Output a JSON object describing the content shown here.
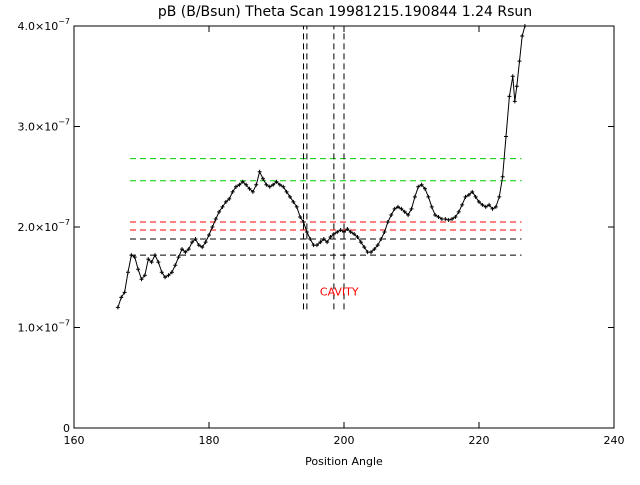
{
  "chart_data": {
    "type": "line",
    "title": "pB (B/Bsun) Theta Scan 19981215.190844  1.24 Rsun",
    "xlabel": "Position Angle",
    "ylabel": "",
    "xlim": [
      160,
      240
    ],
    "ylim": [
      0,
      4e-07
    ],
    "x_ticks": [
      {
        "value": 160,
        "label": "160"
      },
      {
        "value": 180,
        "label": "180"
      },
      {
        "value": 200,
        "label": "200"
      },
      {
        "value": 220,
        "label": "220"
      },
      {
        "value": 240,
        "label": "240"
      }
    ],
    "y_ticks": [
      {
        "value": 0,
        "mant": "0",
        "exp": ""
      },
      {
        "value": 1e-07,
        "mant": "1.0×10",
        "exp": "−7"
      },
      {
        "value": 2e-07,
        "mant": "2.0×10",
        "exp": "−7"
      },
      {
        "value": 3e-07,
        "mant": "3.0×10",
        "exp": "−7"
      },
      {
        "value": 4e-07,
        "mant": "4.0×10",
        "exp": "−7"
      }
    ],
    "grid": false,
    "legend": "none",
    "series": [
      {
        "style": "line-with-plus-markers",
        "color": "#000000",
        "points": [
          [
            166.5,
            1.2e-07
          ],
          [
            167.0,
            1.3e-07
          ],
          [
            167.5,
            1.35e-07
          ],
          [
            168.0,
            1.55e-07
          ],
          [
            168.5,
            1.72e-07
          ],
          [
            169.0,
            1.7e-07
          ],
          [
            169.5,
            1.58e-07
          ],
          [
            170.0,
            1.48e-07
          ],
          [
            170.5,
            1.52e-07
          ],
          [
            171.0,
            1.68e-07
          ],
          [
            171.5,
            1.65e-07
          ],
          [
            172.0,
            1.72e-07
          ],
          [
            172.5,
            1.65e-07
          ],
          [
            173.0,
            1.55e-07
          ],
          [
            173.5,
            1.5e-07
          ],
          [
            174.0,
            1.52e-07
          ],
          [
            174.5,
            1.55e-07
          ],
          [
            175.0,
            1.62e-07
          ],
          [
            175.5,
            1.7e-07
          ],
          [
            176.0,
            1.78e-07
          ],
          [
            176.5,
            1.75e-07
          ],
          [
            177.0,
            1.78e-07
          ],
          [
            177.5,
            1.85e-07
          ],
          [
            178.0,
            1.88e-07
          ],
          [
            178.5,
            1.82e-07
          ],
          [
            179.0,
            1.8e-07
          ],
          [
            179.5,
            1.85e-07
          ],
          [
            180.0,
            1.92e-07
          ],
          [
            180.5,
            2e-07
          ],
          [
            181.0,
            2.08e-07
          ],
          [
            181.5,
            2.15e-07
          ],
          [
            182.0,
            2.2e-07
          ],
          [
            182.5,
            2.25e-07
          ],
          [
            183.0,
            2.28e-07
          ],
          [
            183.5,
            2.35e-07
          ],
          [
            184.0,
            2.4e-07
          ],
          [
            184.5,
            2.42e-07
          ],
          [
            185.0,
            2.45e-07
          ],
          [
            185.5,
            2.42e-07
          ],
          [
            186.0,
            2.38e-07
          ],
          [
            186.5,
            2.35e-07
          ],
          [
            187.0,
            2.42e-07
          ],
          [
            187.5,
            2.55e-07
          ],
          [
            188.0,
            2.48e-07
          ],
          [
            188.5,
            2.42e-07
          ],
          [
            189.0,
            2.4e-07
          ],
          [
            189.5,
            2.42e-07
          ],
          [
            190.0,
            2.45e-07
          ],
          [
            190.5,
            2.42e-07
          ],
          [
            191.0,
            2.4e-07
          ],
          [
            191.5,
            2.35e-07
          ],
          [
            192.0,
            2.3e-07
          ],
          [
            192.5,
            2.25e-07
          ],
          [
            193.0,
            2.2e-07
          ],
          [
            193.5,
            2.1e-07
          ],
          [
            194.0,
            2.05e-07
          ],
          [
            194.5,
            1.95e-07
          ],
          [
            195.0,
            1.88e-07
          ],
          [
            195.5,
            1.82e-07
          ],
          [
            196.0,
            1.82e-07
          ],
          [
            196.5,
            1.85e-07
          ],
          [
            197.0,
            1.88e-07
          ],
          [
            197.5,
            1.85e-07
          ],
          [
            198.0,
            1.9e-07
          ],
          [
            198.5,
            1.93e-07
          ],
          [
            199.0,
            1.95e-07
          ],
          [
            199.5,
            1.97e-07
          ],
          [
            200.0,
            1.95e-07
          ],
          [
            200.5,
            1.98e-07
          ],
          [
            201.0,
            1.95e-07
          ],
          [
            201.5,
            1.93e-07
          ],
          [
            202.0,
            1.9e-07
          ],
          [
            202.5,
            1.85e-07
          ],
          [
            203.0,
            1.8e-07
          ],
          [
            203.5,
            1.75e-07
          ],
          [
            204.0,
            1.75e-07
          ],
          [
            204.5,
            1.78e-07
          ],
          [
            205.0,
            1.82e-07
          ],
          [
            205.5,
            1.88e-07
          ],
          [
            206.0,
            1.95e-07
          ],
          [
            206.5,
            2.05e-07
          ],
          [
            207.0,
            2.12e-07
          ],
          [
            207.5,
            2.18e-07
          ],
          [
            208.0,
            2.2e-07
          ],
          [
            208.5,
            2.18e-07
          ],
          [
            209.0,
            2.15e-07
          ],
          [
            209.5,
            2.12e-07
          ],
          [
            210.0,
            2.18e-07
          ],
          [
            210.5,
            2.3e-07
          ],
          [
            211.0,
            2.4e-07
          ],
          [
            211.5,
            2.42e-07
          ],
          [
            212.0,
            2.38e-07
          ],
          [
            212.5,
            2.3e-07
          ],
          [
            213.0,
            2.2e-07
          ],
          [
            213.5,
            2.12e-07
          ],
          [
            214.0,
            2.1e-07
          ],
          [
            214.5,
            2.08e-07
          ],
          [
            215.0,
            2.08e-07
          ],
          [
            215.5,
            2.07e-07
          ],
          [
            216.0,
            2.08e-07
          ],
          [
            216.5,
            2.1e-07
          ],
          [
            217.0,
            2.15e-07
          ],
          [
            217.5,
            2.22e-07
          ],
          [
            218.0,
            2.3e-07
          ],
          [
            218.5,
            2.32e-07
          ],
          [
            219.0,
            2.35e-07
          ],
          [
            219.5,
            2.3e-07
          ],
          [
            220.0,
            2.25e-07
          ],
          [
            220.5,
            2.22e-07
          ],
          [
            221.0,
            2.2e-07
          ],
          [
            221.5,
            2.22e-07
          ],
          [
            222.0,
            2.18e-07
          ],
          [
            222.5,
            2.2e-07
          ],
          [
            223.0,
            2.3e-07
          ],
          [
            223.5,
            2.5e-07
          ],
          [
            224.0,
            2.9e-07
          ],
          [
            224.5,
            3.3e-07
          ],
          [
            225.0,
            3.5e-07
          ],
          [
            225.3,
            3.25e-07
          ],
          [
            225.6,
            3.4e-07
          ],
          [
            226.0,
            3.65e-07
          ],
          [
            226.4,
            3.9e-07
          ],
          [
            226.8,
            4e-07
          ]
        ]
      }
    ],
    "reference_lines": [
      {
        "axis": "y",
        "value": 2.68e-07,
        "color": "#00cc00",
        "style": "dashed"
      },
      {
        "axis": "y",
        "value": 2.46e-07,
        "color": "#00cc00",
        "style": "dashed"
      },
      {
        "axis": "y",
        "value": 2.05e-07,
        "color": "#ff0000",
        "style": "dashed"
      },
      {
        "axis": "y",
        "value": 1.97e-07,
        "color": "#ff0000",
        "style": "dashed"
      },
      {
        "axis": "y",
        "value": 1.88e-07,
        "color": "#000000",
        "style": "dashed"
      },
      {
        "axis": "y",
        "value": 1.72e-07,
        "color": "#000000",
        "style": "dashed"
      },
      {
        "axis": "x",
        "value": 194.0,
        "color": "#000000",
        "style": "dashed"
      },
      {
        "axis": "x",
        "value": 194.5,
        "color": "#000000",
        "style": "dashed"
      },
      {
        "axis": "x",
        "value": 198.5,
        "color": "#000000",
        "style": "dashed"
      },
      {
        "axis": "x",
        "value": 200.0,
        "color": "#000000",
        "style": "dashed"
      }
    ],
    "reference_extent": {
      "x_from": 168.3,
      "x_to": 226.3,
      "y_from": 1.18e-07,
      "y_to": 4e-07
    },
    "annotations": [
      {
        "text": "CAVITY",
        "x": 199.3,
        "y": 1.32e-07,
        "color": "#ff0000"
      }
    ]
  }
}
